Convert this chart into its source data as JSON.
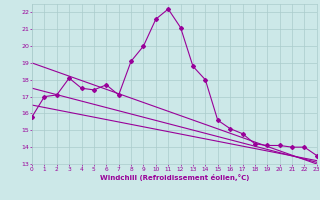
{
  "title": "",
  "xlabel": "Windchill (Refroidissement éolien,°C)",
  "ylabel": "",
  "bg_color": "#cce8e8",
  "line_color": "#990099",
  "grid_color": "#aacccc",
  "xlim": [
    0,
    23
  ],
  "ylim": [
    13,
    22.5
  ],
  "xticks": [
    0,
    1,
    2,
    3,
    4,
    5,
    6,
    7,
    8,
    9,
    10,
    11,
    12,
    13,
    14,
    15,
    16,
    17,
    18,
    19,
    20,
    21,
    22,
    23
  ],
  "yticks": [
    13,
    14,
    15,
    16,
    17,
    18,
    19,
    20,
    21,
    22
  ],
  "series1_x": [
    0,
    1,
    2,
    3,
    4,
    5,
    6,
    7,
    8,
    9,
    10,
    11,
    12,
    13,
    14,
    15,
    16,
    17,
    18,
    19,
    20,
    21,
    22,
    23
  ],
  "series1_y": [
    15.8,
    17.0,
    17.1,
    18.1,
    17.5,
    17.4,
    17.7,
    17.1,
    19.1,
    20.0,
    21.6,
    22.2,
    21.1,
    18.8,
    18.0,
    15.6,
    15.1,
    14.8,
    14.2,
    14.1,
    14.1,
    14.0,
    14.0,
    13.5
  ],
  "series2_x": [
    0,
    23
  ],
  "series2_y": [
    19.0,
    13.0
  ],
  "series3_x": [
    0,
    23
  ],
  "series3_y": [
    16.5,
    13.2
  ],
  "series4_x": [
    0,
    23
  ],
  "series4_y": [
    17.5,
    13.1
  ]
}
